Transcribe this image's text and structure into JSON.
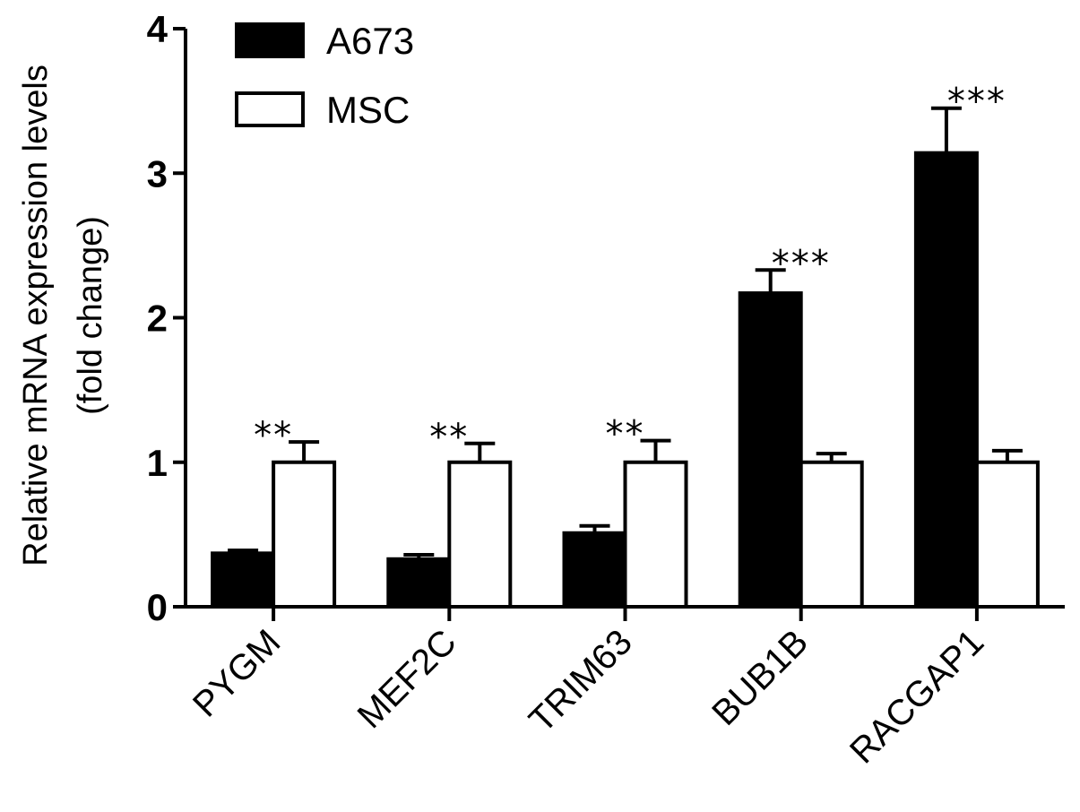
{
  "chart_data": {
    "type": "bar",
    "categories": [
      "PYGM",
      "MEF2C",
      "TRIM63",
      "BUB1B",
      "RACGAP1"
    ],
    "series": [
      {
        "name": "A673",
        "values": [
          0.37,
          0.33,
          0.51,
          2.17,
          3.14
        ],
        "errors": [
          0.02,
          0.03,
          0.05,
          0.16,
          0.31
        ],
        "fill": "#000000"
      },
      {
        "name": "MSC",
        "values": [
          1.0,
          1.0,
          1.0,
          1.0,
          1.0
        ],
        "errors": [
          0.14,
          0.13,
          0.15,
          0.06,
          0.08
        ],
        "fill": "#ffffff"
      }
    ],
    "annotations": [
      "**",
      "**",
      "**",
      "***",
      "***"
    ],
    "ylabel_lines": [
      "Relative mRNA expression levels",
      "(fold change)"
    ],
    "ylim": [
      0,
      4
    ],
    "yticks": [
      0,
      1,
      2,
      3,
      4
    ],
    "legend_position": "top-left",
    "grid": false,
    "colors": {
      "axis": "#000000",
      "bar_dark": "#000000",
      "bar_light": "#ffffff"
    }
  }
}
